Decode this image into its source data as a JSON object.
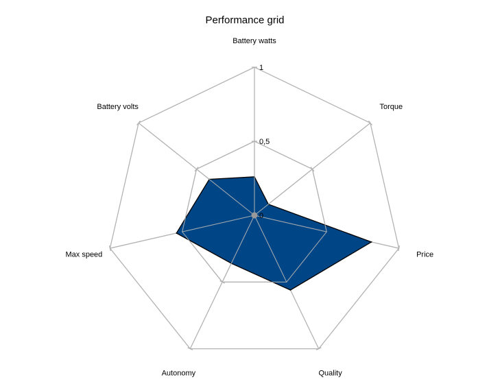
{
  "chart_data": {
    "type": "radar",
    "title": "Performance grid",
    "categories": [
      "Battery watts",
      "Torque",
      "Price",
      "Quality",
      "Autonomy",
      "Max speed",
      "Battery volts"
    ],
    "radial_ticks": [
      "0",
      "0,5",
      "1"
    ],
    "rlim": [
      0,
      1
    ],
    "series": [
      {
        "values": [
          0.26,
          0.12,
          0.81,
          0.56,
          0.36,
          0.54,
          0.39
        ]
      }
    ],
    "colors": {
      "fill": "#004586",
      "stroke": "#000000",
      "grid": "#b3b3b3",
      "center": "#999999"
    }
  }
}
